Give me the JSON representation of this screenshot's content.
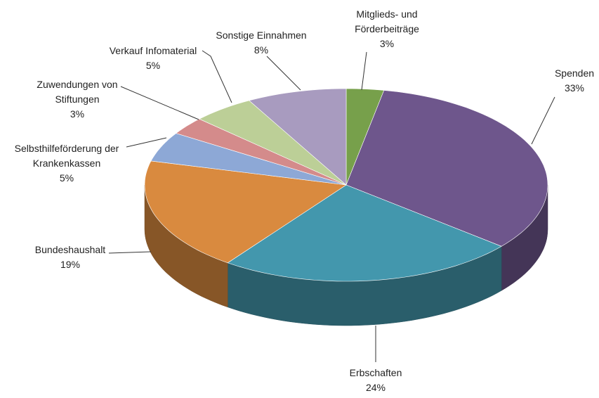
{
  "chart_data": {
    "type": "pie3d",
    "categories": [
      "Mitglieds- und Förderbeiträge",
      "Spenden",
      "Erbschaften",
      "Bundeshaushalt",
      "Selbsthilfeförderung der Krankenkassen",
      "Zuwendungen von Stiftungen",
      "Verkauf Infomaterial",
      "Sonstige Einnahmen"
    ],
    "values": [
      3,
      33,
      24,
      19,
      5,
      3,
      5,
      8
    ],
    "value_labels": [
      "3%",
      "33%",
      "24%",
      "19%",
      "5%",
      "3%",
      "5%",
      "8%"
    ],
    "colors": [
      "#77a04b",
      "#6e568c",
      "#4397ad",
      "#d98a3f",
      "#8da8d6",
      "#d48b8b",
      "#bccf97",
      "#a89bbf"
    ]
  }
}
